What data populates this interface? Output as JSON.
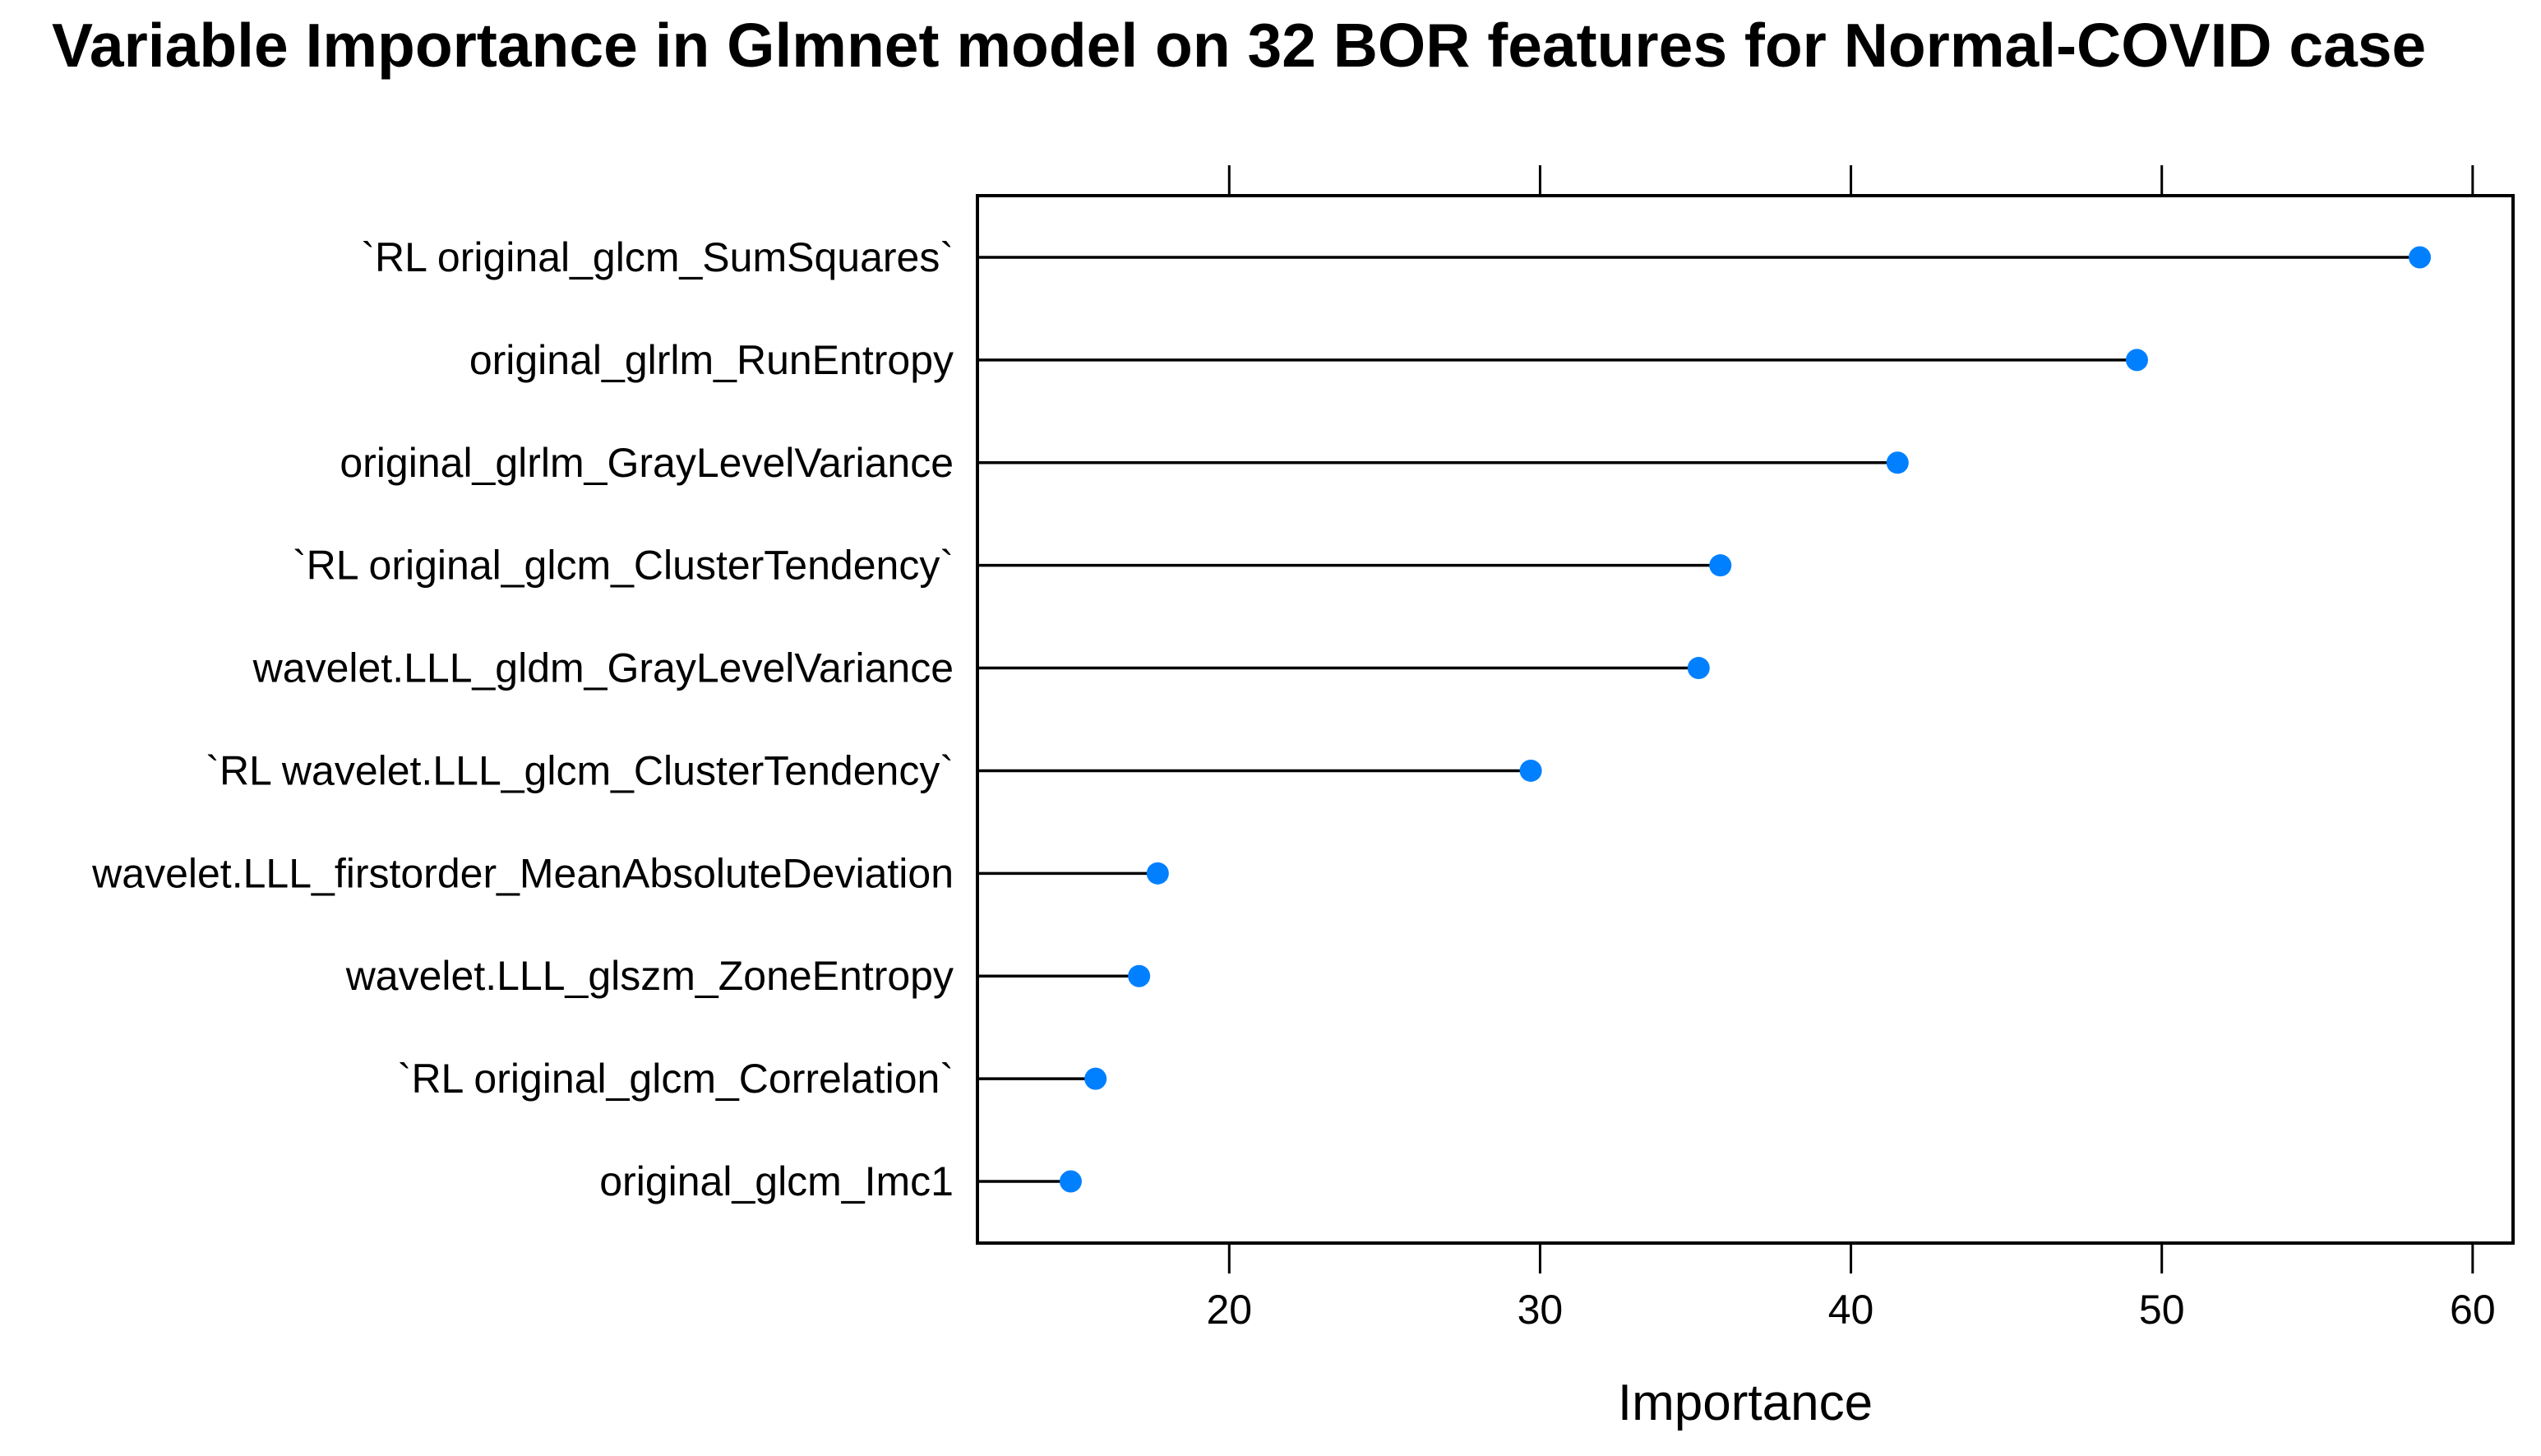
{
  "chart_data": {
    "type": "scatter",
    "subtype": "dotplot-lollipop",
    "title": "Variable Importance in Glmnet model on 32 BOR features for Normal-COVID case",
    "xlabel": "Importance",
    "ylabel": "",
    "categories": [
      "`RL original_glcm_SumSquares`",
      "original_glrlm_RunEntropy",
      "original_glrlm_GrayLevelVariance",
      "`RL original_glcm_ClusterTendency`",
      "wavelet.LLL_gldm_GrayLevelVariance",
      "`RL wavelet.LLL_glcm_ClusterTendency`",
      "wavelet.LLL_firstorder_MeanAbsoluteDeviation",
      "wavelet.LLL_glszm_ZoneEntropy",
      "`RL original_glcm_Correlation`",
      "original_glcm_Imc1"
    ],
    "values": [
      58.3,
      49.2,
      41.5,
      35.8,
      35.1,
      29.7,
      17.7,
      17.1,
      15.7,
      14.9
    ],
    "xlim": [
      11.9,
      61.3
    ],
    "xticks": [
      20,
      30,
      40,
      50,
      60
    ],
    "grid": false,
    "legend": "none",
    "orientation": "horizontal",
    "colors": {
      "point": "#0080FF",
      "line": "#000000",
      "box": "#000000",
      "text": "#000000",
      "background": "#FFFFFF"
    }
  }
}
